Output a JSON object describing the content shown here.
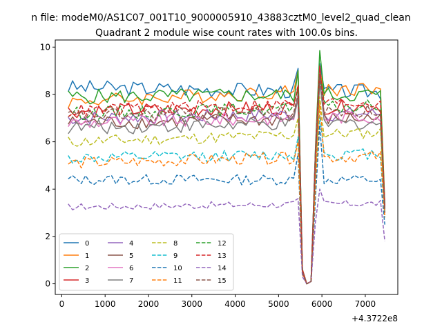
{
  "chart_data": {
    "type": "line",
    "suptitle": "n file: modeM0/AS1C07_001T10_9000005910_43883cztM0_level2_quad_clean",
    "title": "Quadrant 2 module wise count rates with 100.0s bins.",
    "xlabel": "",
    "ylabel": "",
    "x_offset_label": "+4.3722e8",
    "xlim": [
      -150,
      7750
    ],
    "ylim": [
      -0.45,
      10.3
    ],
    "xticks": [
      0,
      1000,
      2000,
      3000,
      4000,
      5000,
      6000,
      7000
    ],
    "xtick_labels": [
      "0",
      "1000",
      "2000",
      "3000",
      "4000",
      "5000",
      "6000",
      "7000"
    ],
    "yticks": [
      0,
      2,
      4,
      6,
      8,
      10
    ],
    "ytick_labels": [
      "0",
      "2",
      "4",
      "6",
      "8",
      "10"
    ],
    "grid": false,
    "legend": {
      "position": "lower-left",
      "columns": 4
    },
    "x": [
      150,
      250,
      350,
      450,
      550,
      650,
      750,
      850,
      950,
      1050,
      1150,
      1250,
      1350,
      1450,
      1550,
      1650,
      1750,
      1850,
      1950,
      2050,
      2150,
      2250,
      2350,
      2450,
      2550,
      2650,
      2750,
      2850,
      2950,
      3050,
      3150,
      3250,
      3350,
      3450,
      3550,
      3650,
      3750,
      3850,
      3950,
      4050,
      4150,
      4250,
      4350,
      4450,
      4550,
      4650,
      4750,
      4850,
      4950,
      5050,
      5150,
      5250,
      5350,
      5450,
      5550,
      5650,
      5750,
      5850,
      5950,
      6050,
      6150,
      6250,
      6350,
      6450,
      6550,
      6650,
      6750,
      6850,
      6950,
      7050,
      7150,
      7250,
      7350,
      7450
    ],
    "gap_x": [
      5550,
      5650,
      5750,
      5850
    ],
    "gap_values": {
      "0": [
        0.6,
        0.0,
        0.1,
        5.6
      ],
      "1": [
        0.6,
        0.0,
        0.1,
        5.5
      ],
      "2": [
        0.6,
        0.0,
        0.1,
        5.7
      ],
      "3": [
        0.6,
        0.0,
        0.1,
        5.5
      ],
      "4": [
        0.5,
        0.0,
        0.1,
        5.3
      ],
      "5": [
        0.5,
        0.0,
        0.1,
        5.2
      ],
      "6": [
        0.5,
        0.0,
        0.1,
        5.3
      ],
      "7": [
        0.5,
        0.0,
        0.1,
        5.2
      ],
      "8": [
        0.5,
        0.0,
        0.1,
        4.7
      ],
      "9": [
        0.4,
        0.0,
        0.1,
        4.2
      ],
      "10": [
        0.4,
        0.0,
        0.1,
        3.6
      ],
      "11": [
        0.4,
        0.0,
        0.1,
        4.2
      ],
      "12": [
        0.5,
        0.0,
        0.1,
        5.2
      ],
      "13": [
        0.5,
        0.0,
        0.1,
        5.3
      ],
      "14": [
        0.3,
        0.0,
        0.1,
        2.6
      ],
      "15": [
        0.5,
        0.0,
        0.1,
        5.2
      ]
    },
    "series": [
      {
        "name": "0",
        "color": "#1f77b4",
        "dash": "solid",
        "base": 8.3,
        "end": 8.1,
        "pre_gap": 9.1,
        "peak": 9.3,
        "last": 3.2,
        "noise": 0.32
      },
      {
        "name": "1",
        "color": "#ff7f0e",
        "dash": "solid",
        "base": 7.7,
        "end": 8.3,
        "pre_gap": 9.0,
        "peak": 9.1,
        "last": 3.4,
        "noise": 0.3
      },
      {
        "name": "2",
        "color": "#2ca02c",
        "dash": "solid",
        "base": 7.9,
        "end": 8.0,
        "pre_gap": 9.0,
        "peak": 9.85,
        "last": 3.3,
        "noise": 0.32
      },
      {
        "name": "3",
        "color": "#d62728",
        "dash": "solid",
        "base": 7.3,
        "end": 7.5,
        "pre_gap": 8.3,
        "peak": 9.2,
        "last": 3.1,
        "noise": 0.3
      },
      {
        "name": "4",
        "color": "#9467bd",
        "dash": "solid",
        "base": 7.0,
        "end": 7.2,
        "pre_gap": 8.0,
        "peak": 8.8,
        "last": 3.3,
        "noise": 0.3
      },
      {
        "name": "5",
        "color": "#8c564b",
        "dash": "solid",
        "base": 6.8,
        "end": 7.0,
        "pre_gap": 7.9,
        "peak": 8.6,
        "last": 3.0,
        "noise": 0.3
      },
      {
        "name": "6",
        "color": "#e377c2",
        "dash": "solid",
        "base": 6.8,
        "end": 7.1,
        "pre_gap": 7.9,
        "peak": 8.9,
        "last": 3.0,
        "noise": 0.3
      },
      {
        "name": "7",
        "color": "#7f7f7f",
        "dash": "solid",
        "base": 6.6,
        "end": 6.8,
        "pre_gap": 7.8,
        "peak": 8.5,
        "last": 3.0,
        "noise": 0.3
      },
      {
        "name": "8",
        "color": "#bcbd22",
        "dash": "dashed",
        "base": 6.0,
        "end": 6.4,
        "pre_gap": 7.0,
        "peak": 7.9,
        "last": 2.9,
        "noise": 0.25
      },
      {
        "name": "9",
        "color": "#17becf",
        "dash": "dashed",
        "base": 5.3,
        "end": 5.5,
        "pre_gap": 6.2,
        "peak": 7.1,
        "last": 2.8,
        "noise": 0.25
      },
      {
        "name": "10",
        "color": "#1f77b4",
        "dash": "dashed",
        "base": 4.4,
        "end": 4.4,
        "pre_gap": 5.5,
        "peak": 6.7,
        "last": 2.5,
        "noise": 0.22
      },
      {
        "name": "11",
        "color": "#ff7f0e",
        "dash": "dashed",
        "base": 5.1,
        "end": 5.4,
        "pre_gap": 6.0,
        "peak": 7.6,
        "last": 2.8,
        "noise": 0.25
      },
      {
        "name": "12",
        "color": "#2ca02c",
        "dash": "dashed",
        "base": 7.2,
        "end": 7.5,
        "pre_gap": 8.2,
        "peak": 8.9,
        "last": 3.2,
        "noise": 0.28
      },
      {
        "name": "13",
        "color": "#d62728",
        "dash": "dashed",
        "base": 7.3,
        "end": 7.7,
        "pre_gap": 8.4,
        "peak": 9.0,
        "last": 3.2,
        "noise": 0.28
      },
      {
        "name": "14",
        "color": "#9467bd",
        "dash": "dashed",
        "base": 3.25,
        "end": 3.4,
        "pre_gap": 3.6,
        "peak": 4.0,
        "last": 1.8,
        "noise": 0.15
      },
      {
        "name": "15",
        "color": "#8c564b",
        "dash": "dashed",
        "base": 7.1,
        "end": 7.3,
        "pre_gap": 8.0,
        "peak": 8.8,
        "last": 3.0,
        "noise": 0.28
      }
    ]
  }
}
